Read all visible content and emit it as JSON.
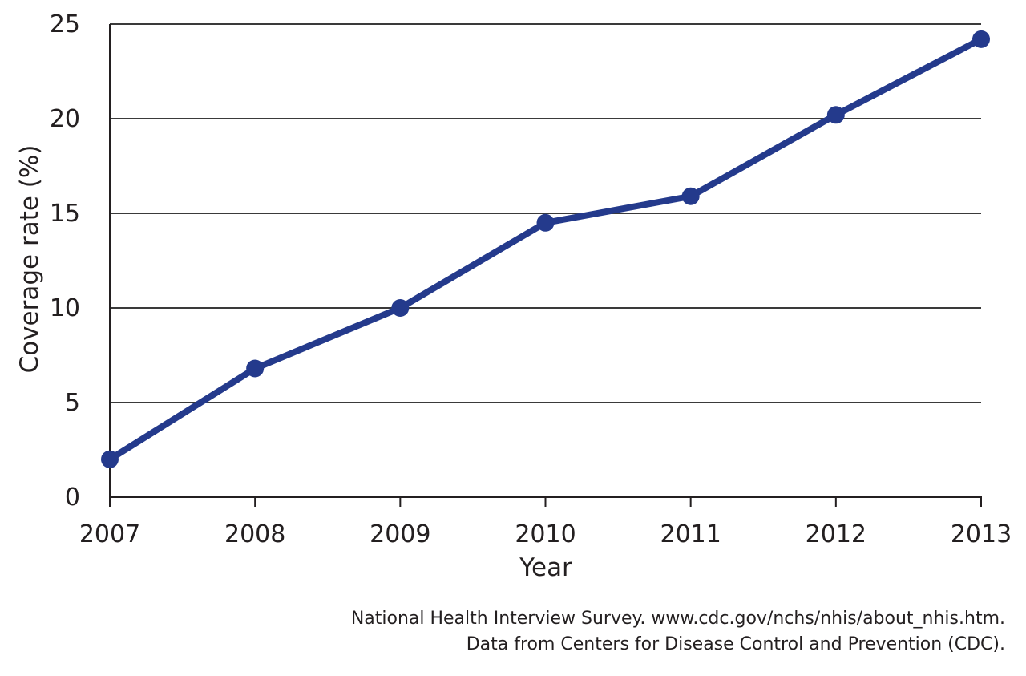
{
  "chart_data": {
    "type": "line",
    "title": "",
    "xlabel": "Year",
    "ylabel": "Coverage rate (%)",
    "categories": [
      "2007",
      "2008",
      "2009",
      "2010",
      "2011",
      "2012",
      "2013"
    ],
    "ylim": [
      0,
      25
    ],
    "yticks": [
      "0",
      "5",
      "10",
      "15",
      "20",
      "25"
    ],
    "grid": "horizontal",
    "series": [
      {
        "values": [
          2.0,
          6.8,
          10.0,
          14.5,
          15.9,
          20.2,
          24.2
        ],
        "color": "#243a8c"
      }
    ]
  },
  "source": {
    "line1": "National Health Interview Survey. www.cdc.gov/nchs/nhis/about_nhis.htm.",
    "line2": "Data from Centers for Disease Control and Prevention (CDC)."
  },
  "colors": {
    "axis": "#231f20",
    "gridline": "#3a3a3a",
    "line": "#243a8c"
  }
}
